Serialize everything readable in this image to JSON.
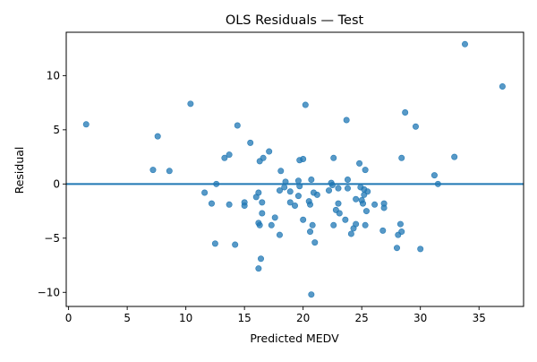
{
  "chart_data": {
    "type": "scatter",
    "title": "OLS Residuals — Test",
    "xlabel": "Predicted MEDV",
    "ylabel": "Residual",
    "xlim": [
      -0.2,
      38.8
    ],
    "ylim": [
      -11.3,
      14.0
    ],
    "xticks": [
      0,
      5,
      10,
      15,
      20,
      25,
      30,
      35
    ],
    "yticks": [
      -10,
      -5,
      0,
      5,
      10
    ],
    "xtick_labels": [
      "0",
      "5",
      "10",
      "15",
      "20",
      "25",
      "30",
      "35"
    ],
    "ytick_labels": [
      "−10",
      "−5",
      "0",
      "5",
      "10"
    ],
    "grid": false,
    "reference_line": 0,
    "point_color": "#1f77b4",
    "line_color": "#1f77b4",
    "points": [
      {
        "x": 1.5,
        "y": 5.5
      },
      {
        "x": 7.2,
        "y": 1.3
      },
      {
        "x": 7.6,
        "y": 4.4
      },
      {
        "x": 8.6,
        "y": 1.2
      },
      {
        "x": 10.4,
        "y": 7.4
      },
      {
        "x": 11.6,
        "y": -0.8
      },
      {
        "x": 12.2,
        "y": -1.8
      },
      {
        "x": 12.6,
        "y": 0.0
      },
      {
        "x": 12.5,
        "y": -5.5
      },
      {
        "x": 13.3,
        "y": 2.4
      },
      {
        "x": 13.7,
        "y": 2.7
      },
      {
        "x": 13.7,
        "y": -1.9
      },
      {
        "x": 14.2,
        "y": -5.6
      },
      {
        "x": 14.4,
        "y": 5.4
      },
      {
        "x": 15.0,
        "y": -1.7
      },
      {
        "x": 15.0,
        "y": -2.0
      },
      {
        "x": 15.5,
        "y": 3.8
      },
      {
        "x": 16.0,
        "y": -1.2
      },
      {
        "x": 16.2,
        "y": -0.8
      },
      {
        "x": 16.2,
        "y": -3.6
      },
      {
        "x": 16.3,
        "y": -3.8
      },
      {
        "x": 16.3,
        "y": 2.1
      },
      {
        "x": 16.2,
        "y": -7.8
      },
      {
        "x": 16.4,
        "y": -6.9
      },
      {
        "x": 16.5,
        "y": -1.7
      },
      {
        "x": 16.5,
        "y": -2.7
      },
      {
        "x": 16.6,
        "y": 2.4
      },
      {
        "x": 17.1,
        "y": 3.0
      },
      {
        "x": 17.3,
        "y": -3.8
      },
      {
        "x": 17.6,
        "y": -3.1
      },
      {
        "x": 18.0,
        "y": -4.7
      },
      {
        "x": 18.0,
        "y": -0.6
      },
      {
        "x": 18.1,
        "y": 1.2
      },
      {
        "x": 18.5,
        "y": 0.2
      },
      {
        "x": 18.4,
        "y": -0.3
      },
      {
        "x": 18.9,
        "y": -0.7
      },
      {
        "x": 18.9,
        "y": -1.7
      },
      {
        "x": 19.3,
        "y": -2.0
      },
      {
        "x": 19.6,
        "y": 0.3
      },
      {
        "x": 19.6,
        "y": -1.1
      },
      {
        "x": 19.7,
        "y": -0.2
      },
      {
        "x": 19.7,
        "y": 2.2
      },
      {
        "x": 20.0,
        "y": 2.3
      },
      {
        "x": 20.0,
        "y": -3.3
      },
      {
        "x": 20.2,
        "y": 7.3
      },
      {
        "x": 20.5,
        "y": -1.6
      },
      {
        "x": 20.6,
        "y": -1.9
      },
      {
        "x": 20.6,
        "y": -4.4
      },
      {
        "x": 20.7,
        "y": 0.4
      },
      {
        "x": 20.7,
        "y": -10.2
      },
      {
        "x": 20.8,
        "y": -3.8
      },
      {
        "x": 20.9,
        "y": -0.8
      },
      {
        "x": 21.0,
        "y": -5.4
      },
      {
        "x": 21.2,
        "y": -1.0
      },
      {
        "x": 22.2,
        "y": -0.6
      },
      {
        "x": 22.4,
        "y": 0.1
      },
      {
        "x": 22.6,
        "y": 2.4
      },
      {
        "x": 22.5,
        "y": -0.1
      },
      {
        "x": 22.6,
        "y": -3.8
      },
      {
        "x": 22.8,
        "y": -2.4
      },
      {
        "x": 23.0,
        "y": -0.4
      },
      {
        "x": 23.0,
        "y": -1.8
      },
      {
        "x": 23.1,
        "y": -2.7
      },
      {
        "x": 23.6,
        "y": -3.3
      },
      {
        "x": 23.7,
        "y": 5.9
      },
      {
        "x": 23.8,
        "y": 0.4
      },
      {
        "x": 23.8,
        "y": -0.4
      },
      {
        "x": 24.1,
        "y": -4.6
      },
      {
        "x": 24.3,
        "y": -4.1
      },
      {
        "x": 24.5,
        "y": -3.7
      },
      {
        "x": 24.5,
        "y": -1.4
      },
      {
        "x": 24.8,
        "y": 1.9
      },
      {
        "x": 24.9,
        "y": -0.3
      },
      {
        "x": 25.0,
        "y": -1.5
      },
      {
        "x": 25.1,
        "y": -1.8
      },
      {
        "x": 25.2,
        "y": -0.5
      },
      {
        "x": 25.2,
        "y": -1.0
      },
      {
        "x": 25.3,
        "y": 1.3
      },
      {
        "x": 25.3,
        "y": -3.8
      },
      {
        "x": 25.4,
        "y": -2.5
      },
      {
        "x": 25.5,
        "y": -0.7
      },
      {
        "x": 26.1,
        "y": -1.9
      },
      {
        "x": 26.8,
        "y": -4.3
      },
      {
        "x": 26.9,
        "y": -2.2
      },
      {
        "x": 26.9,
        "y": -1.8
      },
      {
        "x": 28.0,
        "y": -5.9
      },
      {
        "x": 28.1,
        "y": -4.7
      },
      {
        "x": 28.3,
        "y": -3.7
      },
      {
        "x": 28.4,
        "y": -4.4
      },
      {
        "x": 28.4,
        "y": 2.4
      },
      {
        "x": 28.7,
        "y": 6.6
      },
      {
        "x": 29.6,
        "y": 5.3
      },
      {
        "x": 30.0,
        "y": -6.0
      },
      {
        "x": 32.9,
        "y": 2.5
      },
      {
        "x": 31.2,
        "y": 0.8
      },
      {
        "x": 31.5,
        "y": 0.0
      },
      {
        "x": 33.8,
        "y": 12.9
      },
      {
        "x": 37.0,
        "y": 9.0
      }
    ]
  }
}
